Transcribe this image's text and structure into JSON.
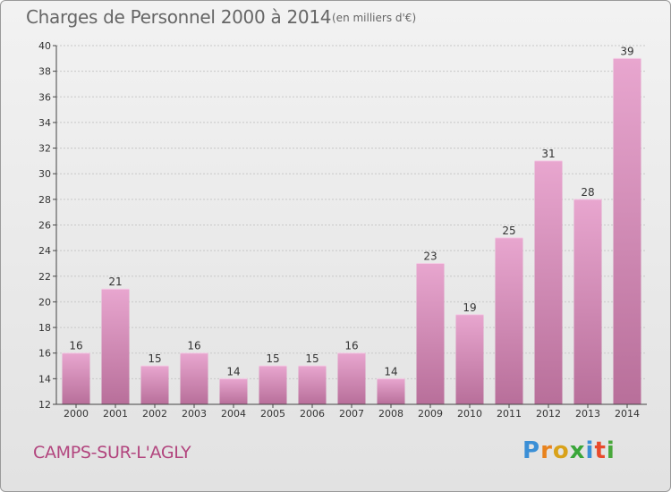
{
  "header": {
    "title": "Charges de Personnel 2000 à 2014",
    "unit": "(en milliers d'€)"
  },
  "footer": {
    "commune": "CAMPS-SUR-L'AGLY",
    "logo": [
      "P",
      "r",
      "o",
      "x",
      "i",
      "t",
      "i"
    ],
    "logo_colors": [
      "#3b8fd6",
      "#e8831e",
      "#d9a21a",
      "#3aa63a",
      "#3b8fd6",
      "#e84a2c",
      "#49a83c"
    ]
  },
  "colors": {
    "bar_light": "#e8a6cf",
    "bar_dark": "#b86f9a",
    "accent": "#b2457e"
  },
  "chart_data": {
    "type": "bar",
    "title": "Charges de Personnel 2000 à 2014",
    "subtitle": "(en milliers d'€)",
    "categories": [
      "2000",
      "2001",
      "2002",
      "2003",
      "2004",
      "2005",
      "2006",
      "2007",
      "2008",
      "2009",
      "2010",
      "2011",
      "2012",
      "2013",
      "2014"
    ],
    "values": [
      16,
      21,
      15,
      16,
      14,
      15,
      15,
      16,
      14,
      23,
      19,
      25,
      31,
      28,
      39
    ],
    "ylim": [
      12,
      40
    ],
    "yticks": [
      12,
      14,
      16,
      18,
      20,
      22,
      24,
      26,
      28,
      30,
      32,
      34,
      36,
      38,
      40
    ],
    "grid": true
  }
}
